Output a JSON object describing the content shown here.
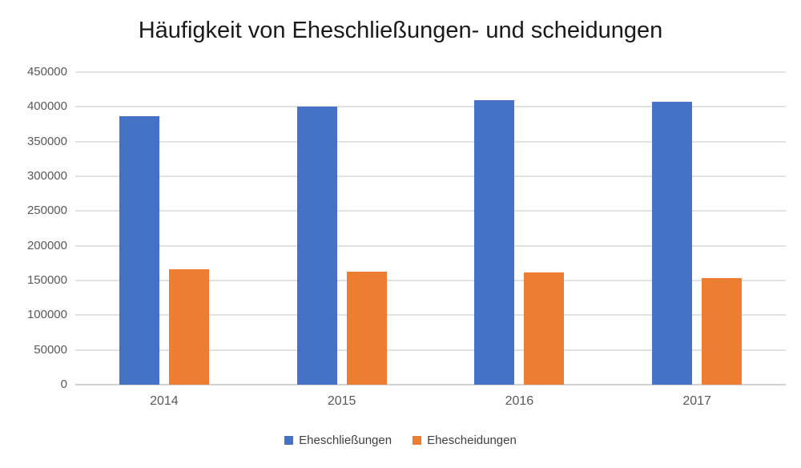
{
  "chart_data": {
    "type": "bar",
    "title": "Häufigkeit von Eheschließungen- und scheidungen",
    "categories": [
      "2014",
      "2015",
      "2016",
      "2017"
    ],
    "series": [
      {
        "name": "Eheschließungen",
        "color": "#4472C4",
        "values": [
          387000,
          400000,
          410000,
          407000
        ]
      },
      {
        "name": "Ehescheidungen",
        "color": "#ED7D31",
        "values": [
          166000,
          163000,
          162000,
          153000
        ]
      }
    ],
    "ylim": [
      0,
      450000
    ],
    "ytick_step": 50000,
    "ytick_labels": [
      "0",
      "50000",
      "100000",
      "150000",
      "200000",
      "250000",
      "300000",
      "350000",
      "400000",
      "450000"
    ],
    "grid": true,
    "legend_position": "bottom",
    "colors": {
      "grid": "#E0E0E0",
      "axis_line": "#D6D6D6",
      "axis_text": "#595959",
      "title_text": "#1A1A1A",
      "legend_text": "#404040"
    }
  }
}
